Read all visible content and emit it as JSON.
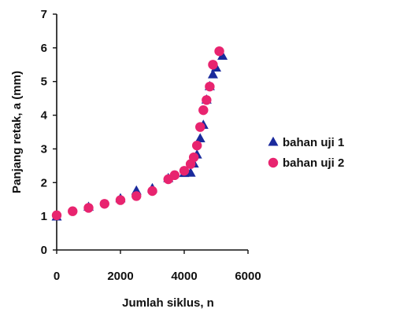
{
  "chart_data": {
    "type": "scatter",
    "title": "",
    "xlabel": "Jumlah siklus, n",
    "ylabel": "Panjang retak, a (mm)",
    "xlim": [
      0,
      6000
    ],
    "ylim": [
      0,
      7
    ],
    "xticks": [
      0,
      2000,
      4000,
      6000
    ],
    "yticks": [
      0,
      1,
      2,
      3,
      4,
      5,
      6,
      7
    ],
    "grid": false,
    "legend_position": "right",
    "series": [
      {
        "name": "bahan uji 1",
        "marker": "triangle",
        "color": "#1a2a9c",
        "points": [
          [
            0,
            0.98
          ],
          [
            1000,
            1.27
          ],
          [
            2000,
            1.52
          ],
          [
            2500,
            1.75
          ],
          [
            3000,
            1.82
          ],
          [
            3500,
            2.12
          ],
          [
            4000,
            2.27
          ],
          [
            4200,
            2.28
          ],
          [
            4300,
            2.55
          ],
          [
            4400,
            2.82
          ],
          [
            4500,
            3.3
          ],
          [
            4600,
            3.7
          ],
          [
            4700,
            4.45
          ],
          [
            4800,
            4.85
          ],
          [
            4900,
            5.2
          ],
          [
            5000,
            5.4
          ],
          [
            5200,
            5.75
          ]
        ]
      },
      {
        "name": "bahan uji 2",
        "marker": "circle",
        "color": "#e8246f",
        "points": [
          [
            0,
            1.03
          ],
          [
            500,
            1.15
          ],
          [
            1000,
            1.25
          ],
          [
            1500,
            1.37
          ],
          [
            2000,
            1.48
          ],
          [
            2500,
            1.6
          ],
          [
            3000,
            1.75
          ],
          [
            3500,
            2.1
          ],
          [
            3700,
            2.22
          ],
          [
            4000,
            2.35
          ],
          [
            4200,
            2.55
          ],
          [
            4300,
            2.75
          ],
          [
            4400,
            3.1
          ],
          [
            4500,
            3.65
          ],
          [
            4600,
            4.15
          ],
          [
            4700,
            4.45
          ],
          [
            4800,
            4.85
          ],
          [
            4900,
            5.5
          ],
          [
            5100,
            5.9
          ]
        ]
      }
    ]
  }
}
